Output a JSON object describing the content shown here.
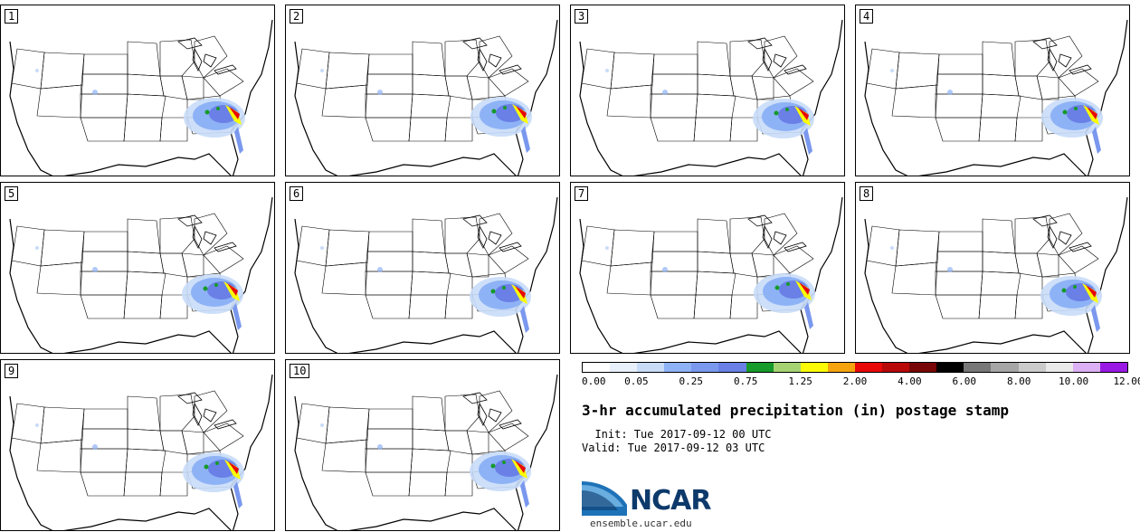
{
  "panels": [
    {
      "label": "1"
    },
    {
      "label": "2"
    },
    {
      "label": "3"
    },
    {
      "label": "4"
    },
    {
      "label": "5"
    },
    {
      "label": "6"
    },
    {
      "label": "7"
    },
    {
      "label": "8"
    },
    {
      "label": "9"
    },
    {
      "label": "10"
    }
  ],
  "colorbar": {
    "colors": [
      "#ffffff",
      "#e8f0fc",
      "#c8dcf8",
      "#8eb2f6",
      "#7a98ee",
      "#6a80e6",
      "#169a2a",
      "#a5d372",
      "#fbfb08",
      "#f6a40e",
      "#e80808",
      "#b80808",
      "#780606",
      "#000000",
      "#777777",
      "#a6a6a6",
      "#cbcbcb",
      "#eaeaea",
      "#dcb0f4",
      "#9a18e4"
    ],
    "tick_labels": [
      "0.00",
      "0.05",
      "0.25",
      "0.75",
      "1.25",
      "2.00",
      "4.00",
      "6.00",
      "8.00",
      "10.00",
      "12.00"
    ]
  },
  "title": "3-hr accumulated precipitation (in) postage stamp",
  "init_line": "  Init: Tue 2017-09-12 00 UTC",
  "valid_line": "Valid: Tue 2017-09-12 03 UTC",
  "logo": {
    "name": "NCAR",
    "url": "ensemble.ucar.edu"
  }
}
